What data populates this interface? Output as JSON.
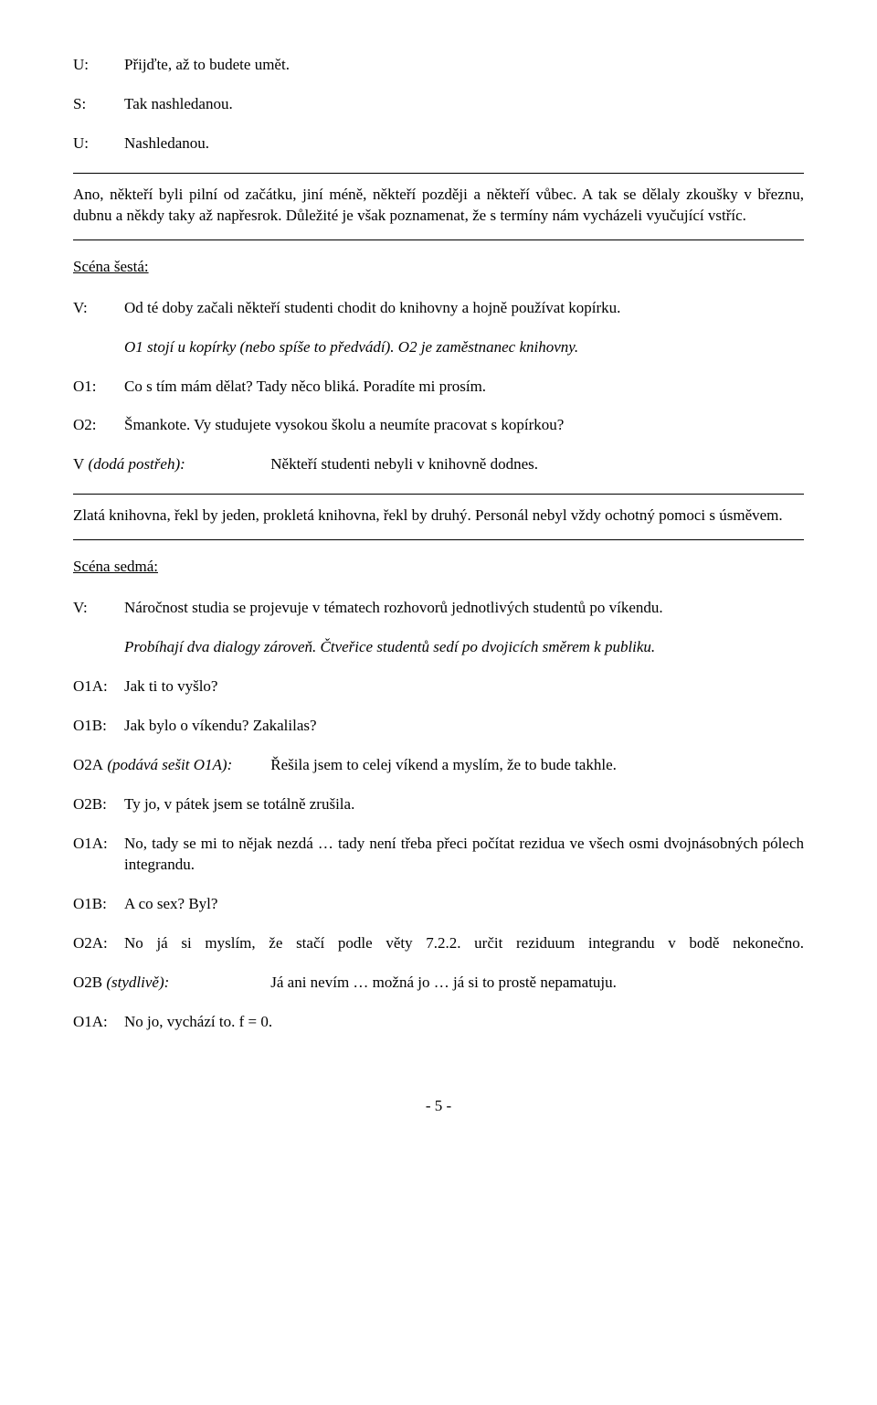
{
  "lines": {
    "l1s": "U:",
    "l1t": "Přijďte, až to budete umět.",
    "l2s": "S:",
    "l2t": "Tak nashledanou.",
    "l3s": "U:",
    "l3t": "Nashledanou."
  },
  "narr1": "Ano, někteří byli pilní od začátku, jiní méně, někteří později a někteří vůbec. A tak se dělaly zkoušky v březnu, dubnu a někdy taky až napřesrok. Důležité je však poznamenat, že s termíny nám vycházeli vyučující vstříc.",
  "scene6": "Scéna šestá:",
  "v1s": "V:",
  "v1t": "Od té doby začali někteří studenti chodit do knihovny a hojně používat kopírku.",
  "stage1": "O1 stojí u kopírky (nebo spíše to předvádí). O2 je zaměstnanec knihovny.",
  "o1s": "O1:",
  "o1t": "Co s tím mám dělat? Tady něco bliká. Poradíte mi prosím.",
  "o2s": "O2:",
  "o2t": "Šmankote. Vy studujete vysokou školu a neumíte pracovat s kopírkou?",
  "vd_label": "V",
  "vd_stage": " (dodá postřeh):",
  "vd_text": "Někteří studenti nebyli v knihovně dodnes.",
  "narr2": "Zlatá knihovna, řekl by jeden, prokletá knihovna, řekl by druhý. Personál nebyl vždy ochotný pomoci s úsměvem.",
  "scene7": "Scéna sedmá:",
  "v2s": "V:",
  "v2t": "Náročnost studia se projevuje v tématech rozhovorů jednotlivých studentů po víkendu.",
  "stage2": "Probíhají dva dialogy zároveň. Čtveřice studentů sedí po dvojicích směrem k publiku.",
  "o1a1s": "O1A:",
  "o1a1t": "Jak ti to vyšlo?",
  "o1b1s": "O1B:",
  "o1b1t": "Jak bylo o víkendu? Zakalilas?",
  "o2a_label": "O2A",
  "o2a_stage": " (podává sešit O1A):",
  "o2a_text": "Řešila jsem to celej víkend a myslím, že to bude takhle.",
  "o2b1s": "O2B:",
  "o2b1t": "Ty jo, v pátek jsem se totálně zrušila.",
  "o1a2s": "O1A:",
  "o1a2t": "No, tady se mi to nějak nezdá … tady není třeba přeci počítat rezidua ve všech osmi dvojnásobných pólech integrandu.",
  "o1b2s": "O1B:",
  "o1b2t": "A co sex? Byl?",
  "o2a2s": "O2A:",
  "o2a2t": "No já si myslím, že stačí podle věty 7.2.2. určit reziduum integrandu v bodě nekonečno.",
  "o2b_label": "O2B",
  "o2b_stage": " (stydlivě):",
  "o2b_text": "Já ani nevím … možná jo … já si to prostě nepamatuju.",
  "o1a3s": "O1A:",
  "o1a3t": "No jo, vychází to. f = 0.",
  "pagenum": "- 5 -"
}
